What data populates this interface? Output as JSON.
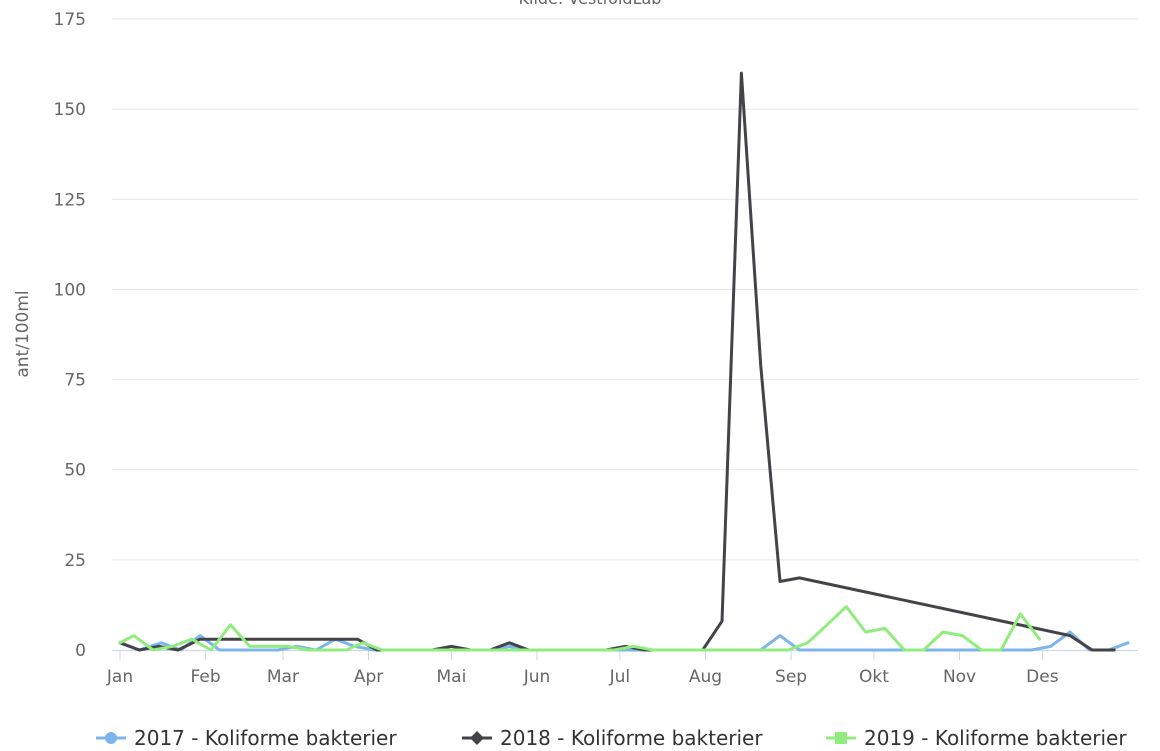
{
  "chart_data": {
    "type": "line",
    "subtitle": "Kilde: VestfoldLab",
    "ylabel": "ant/100ml",
    "xlabel": "",
    "ylim": [
      0,
      175
    ],
    "yticks": [
      0,
      25,
      50,
      75,
      100,
      125,
      150,
      175
    ],
    "xlim": [
      1,
      366
    ],
    "months": [
      {
        "label": "Jan",
        "day": 1
      },
      {
        "label": "Feb",
        "day": 32
      },
      {
        "label": "Mar",
        "day": 60
      },
      {
        "label": "Apr",
        "day": 91
      },
      {
        "label": "Mai",
        "day": 121
      },
      {
        "label": "Jun",
        "day": 152
      },
      {
        "label": "Jul",
        "day": 182
      },
      {
        "label": "Aug",
        "day": 213
      },
      {
        "label": "Sep",
        "day": 244
      },
      {
        "label": "Okt",
        "day": 274
      },
      {
        "label": "Nov",
        "day": 305
      },
      {
        "label": "Des",
        "day": 335
      }
    ],
    "grid": true,
    "legend_position": "bottom",
    "series": [
      {
        "name": "2017 - Koliforme bakterier",
        "color": "#7cb5ec",
        "marker": "circle",
        "points": [
          [
            1,
            2
          ],
          [
            8,
            0
          ],
          [
            16,
            2
          ],
          [
            23,
            0
          ],
          [
            30,
            4
          ],
          [
            37,
            0
          ],
          [
            44,
            0
          ],
          [
            51,
            0
          ],
          [
            58,
            0
          ],
          [
            65,
            1
          ],
          [
            72,
            0
          ],
          [
            79,
            3
          ],
          [
            86,
            1
          ],
          [
            93,
            0
          ],
          [
            100,
            0
          ],
          [
            107,
            0
          ],
          [
            114,
            0
          ],
          [
            121,
            0
          ],
          [
            128,
            0
          ],
          [
            135,
            0
          ],
          [
            142,
            1
          ],
          [
            149,
            0
          ],
          [
            156,
            0
          ],
          [
            163,
            0
          ],
          [
            170,
            0
          ],
          [
            177,
            0
          ],
          [
            184,
            0
          ],
          [
            191,
            0
          ],
          [
            198,
            0
          ],
          [
            205,
            0
          ],
          [
            212,
            0
          ],
          [
            219,
            0
          ],
          [
            226,
            0
          ],
          [
            233,
            0
          ],
          [
            240,
            4
          ],
          [
            247,
            0
          ],
          [
            254,
            0
          ],
          [
            261,
            0
          ],
          [
            268,
            0
          ],
          [
            275,
            0
          ],
          [
            282,
            0
          ],
          [
            289,
            0
          ],
          [
            296,
            0
          ],
          [
            303,
            0
          ],
          [
            310,
            0
          ],
          [
            317,
            0
          ],
          [
            324,
            0
          ],
          [
            331,
            0
          ],
          [
            338,
            1
          ],
          [
            345,
            5
          ],
          [
            352,
            0
          ],
          [
            359,
            0
          ],
          [
            366,
            2
          ]
        ]
      },
      {
        "name": "2018 - Koliforme bakterier",
        "color": "#434348",
        "marker": "diamond",
        "points": [
          [
            1,
            2
          ],
          [
            8,
            0
          ],
          [
            15,
            1
          ],
          [
            22,
            0
          ],
          [
            30,
            3
          ],
          [
            37,
            3
          ],
          [
            45,
            3
          ],
          [
            52,
            3
          ],
          [
            60,
            3
          ],
          [
            66,
            3
          ],
          [
            73,
            3
          ],
          [
            80,
            3
          ],
          [
            87,
            3
          ],
          [
            94,
            0
          ],
          [
            100,
            0
          ],
          [
            107,
            0
          ],
          [
            114,
            0
          ],
          [
            121,
            1
          ],
          [
            128,
            0
          ],
          [
            135,
            0
          ],
          [
            142,
            2
          ],
          [
            149,
            0
          ],
          [
            156,
            0
          ],
          [
            163,
            0
          ],
          [
            170,
            0
          ],
          [
            177,
            0
          ],
          [
            184,
            1
          ],
          [
            191,
            0
          ],
          [
            198,
            0
          ],
          [
            205,
            0
          ],
          [
            212,
            0
          ],
          [
            219,
            8
          ],
          [
            226,
            160
          ],
          [
            233,
            79
          ],
          [
            240,
            19
          ],
          [
            247,
            20
          ],
          [
            345,
            4
          ],
          [
            353,
            0
          ],
          [
            361,
            0
          ]
        ]
      },
      {
        "name": "2019 - Koliforme bakterier",
        "color": "#90ed7d",
        "marker": "square",
        "points": [
          [
            1,
            2
          ],
          [
            6,
            4
          ],
          [
            13,
            0
          ],
          [
            20,
            1
          ],
          [
            27,
            3
          ],
          [
            34,
            0
          ],
          [
            41,
            7
          ],
          [
            48,
            1
          ],
          [
            55,
            1
          ],
          [
            62,
            1
          ],
          [
            69,
            0
          ],
          [
            76,
            0
          ],
          [
            83,
            0
          ],
          [
            89,
            2
          ],
          [
            96,
            0
          ],
          [
            103,
            0
          ],
          [
            110,
            0
          ],
          [
            117,
            0
          ],
          [
            124,
            0
          ],
          [
            131,
            0
          ],
          [
            138,
            0
          ],
          [
            145,
            0
          ],
          [
            152,
            0
          ],
          [
            159,
            0
          ],
          [
            166,
            0
          ],
          [
            173,
            0
          ],
          [
            180,
            0
          ],
          [
            187,
            1
          ],
          [
            194,
            0
          ],
          [
            201,
            0
          ],
          [
            208,
            0
          ],
          [
            215,
            0
          ],
          [
            222,
            0
          ],
          [
            229,
            0
          ],
          [
            236,
            0
          ],
          [
            243,
            0
          ],
          [
            250,
            2
          ],
          [
            257,
            7
          ],
          [
            264,
            12
          ],
          [
            271,
            5
          ],
          [
            278,
            6
          ],
          [
            285,
            0
          ],
          [
            292,
            0
          ],
          [
            299,
            5
          ],
          [
            306,
            4
          ],
          [
            313,
            0
          ],
          [
            320,
            0
          ],
          [
            327,
            10
          ],
          [
            334,
            3
          ]
        ]
      }
    ]
  }
}
